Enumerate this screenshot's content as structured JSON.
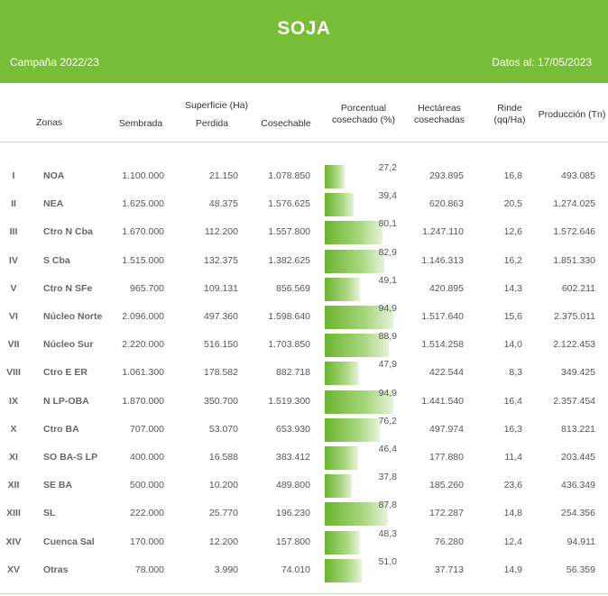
{
  "header": {
    "title": "SOJA",
    "campaign": "Campaña 2022/23",
    "date": "Datos al: 17/05/2023"
  },
  "columns": {
    "zonas": "Zonas",
    "superficie": "Superficie (Ha)",
    "sembrada": "Sembrada",
    "perdida": "Perdida",
    "cosechable": "Cosechable",
    "porcentual_1": "Porcentual",
    "porcentual_2": "cosechado (%)",
    "hectareas_1": "Hectáreas",
    "hectareas_2": "cosechadas",
    "rinde_1": "Rinde",
    "rinde_2": "(qq/Ha)",
    "produccion": "Producción (Tn)"
  },
  "rows": [
    {
      "roman": "I",
      "zone": "NOA",
      "sembrada": "1.100.000",
      "perdida": "21.150",
      "cosechable": "1.078.850",
      "pct": "27,2",
      "pct_value": 27.2,
      "hectareas": "293.895",
      "rinde": "16,8",
      "produccion": "493.085"
    },
    {
      "roman": "II",
      "zone": "NEA",
      "sembrada": "1.625.000",
      "perdida": "48.375",
      "cosechable": "1.576.625",
      "pct": "39,4",
      "pct_value": 39.4,
      "hectareas": "620.863",
      "rinde": "20,5",
      "produccion": "1.274.025"
    },
    {
      "roman": "III",
      "zone": "Ctro N Cba",
      "sembrada": "1.670.000",
      "perdida": "112.200",
      "cosechable": "1.557.800",
      "pct": "80,1",
      "pct_value": 80.1,
      "hectareas": "1.247.110",
      "rinde": "12,6",
      "produccion": "1.572.646"
    },
    {
      "roman": "IV",
      "zone": "S Cba",
      "sembrada": "1.515.000",
      "perdida": "132.375",
      "cosechable": "1.382.625",
      "pct": "82,9",
      "pct_value": 82.9,
      "hectareas": "1.146.313",
      "rinde": "16,2",
      "produccion": "1.851.330"
    },
    {
      "roman": "V",
      "zone": "Ctro N SFe",
      "sembrada": "965.700",
      "perdida": "109.131",
      "cosechable": "856.569",
      "pct": "49,1",
      "pct_value": 49.1,
      "hectareas": "420.895",
      "rinde": "14,3",
      "produccion": "602.211"
    },
    {
      "roman": "VI",
      "zone": "Núcleo Norte",
      "sembrada": "2.096.000",
      "perdida": "497.360",
      "cosechable": "1.598.640",
      "pct": "94,9",
      "pct_value": 94.9,
      "hectareas": "1.517.640",
      "rinde": "15,6",
      "produccion": "2.375.011"
    },
    {
      "roman": "VII",
      "zone": "Núcleo Sur",
      "sembrada": "2.220.000",
      "perdida": "516.150",
      "cosechable": "1.703.850",
      "pct": "88,9",
      "pct_value": 88.9,
      "hectareas": "1.514.258",
      "rinde": "14,0",
      "produccion": "2.122.453"
    },
    {
      "roman": "VIII",
      "zone": "Ctro E ER",
      "sembrada": "1.061.300",
      "perdida": "178.582",
      "cosechable": "882.718",
      "pct": "47,9",
      "pct_value": 47.9,
      "hectareas": "422.544",
      "rinde": "8,3",
      "produccion": "349.425"
    },
    {
      "roman": "IX",
      "zone": "N LP-OBA",
      "sembrada": "1.870.000",
      "perdida": "350.700",
      "cosechable": "1.519.300",
      "pct": "94,9",
      "pct_value": 94.9,
      "hectareas": "1.441.540",
      "rinde": "16,4",
      "produccion": "2.357.454"
    },
    {
      "roman": "X",
      "zone": "Ctro BA",
      "sembrada": "707.000",
      "perdida": "53.070",
      "cosechable": "653.930",
      "pct": "76,2",
      "pct_value": 76.2,
      "hectareas": "497.974",
      "rinde": "16,3",
      "produccion": "813.221"
    },
    {
      "roman": "XI",
      "zone": "SO BA-S LP",
      "sembrada": "400.000",
      "perdida": "16.588",
      "cosechable": "383.412",
      "pct": "46,4",
      "pct_value": 46.4,
      "hectareas": "177.880",
      "rinde": "11,4",
      "produccion": "203.445"
    },
    {
      "roman": "XII",
      "zone": "SE BA",
      "sembrada": "500.000",
      "perdida": "10.200",
      "cosechable": "489.800",
      "pct": "37,8",
      "pct_value": 37.8,
      "hectareas": "185.260",
      "rinde": "23,6",
      "produccion": "436.349"
    },
    {
      "roman": "XIII",
      "zone": "SL",
      "sembrada": "222.000",
      "perdida": "25.770",
      "cosechable": "196.230",
      "pct": "87,8",
      "pct_value": 87.8,
      "hectareas": "172.287",
      "rinde": "14,8",
      "produccion": "254.356"
    },
    {
      "roman": "XIV",
      "zone": "Cuenca Sal",
      "sembrada": "170.000",
      "perdida": "12.200",
      "cosechable": "157.800",
      "pct": "48,3",
      "pct_value": 48.3,
      "hectareas": "76.280",
      "rinde": "12,4",
      "produccion": "94.911"
    },
    {
      "roman": "XV",
      "zone": "Otras",
      "sembrada": "78.000",
      "perdida": "3.990",
      "cosechable": "74.010",
      "pct": "51,0",
      "pct_value": 51.0,
      "hectareas": "37.713",
      "rinde": "14,9",
      "produccion": "56.359"
    }
  ],
  "colors": {
    "header_green": "#78bd36",
    "bar_green": "#6bb42f"
  }
}
